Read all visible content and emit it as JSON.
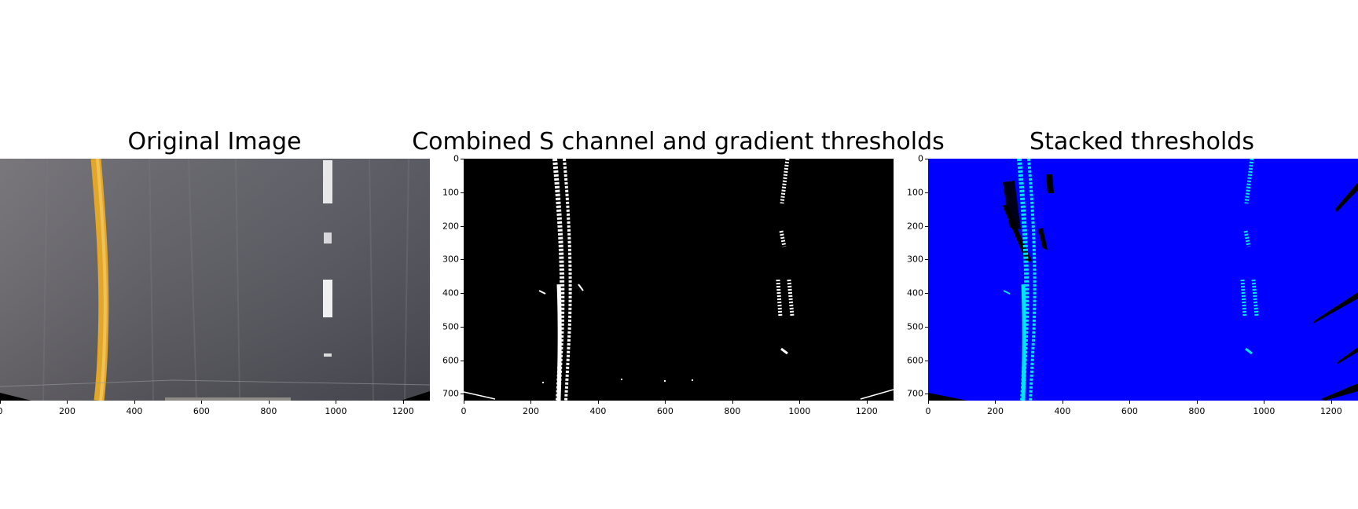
{
  "figure": {
    "panels": [
      {
        "title": "Original Image",
        "kind": "road-photo"
      },
      {
        "title": "Combined S channel and gradient thresholds",
        "kind": "binary-threshold"
      },
      {
        "title": "Stacked thresholds",
        "kind": "stacked-threshold"
      }
    ],
    "x_ticks": [
      "0",
      "200",
      "400",
      "600",
      "800",
      "1000",
      "1200"
    ],
    "y_ticks": [
      "0",
      "100",
      "200",
      "300",
      "400",
      "500",
      "600",
      "700"
    ],
    "x_tick_values": [
      0,
      200,
      400,
      600,
      800,
      1000,
      1200
    ],
    "y_tick_values": [
      0,
      100,
      200,
      300,
      400,
      500,
      600,
      700
    ],
    "image_width": 1280,
    "image_height": 720,
    "colors": {
      "road": "#5a5a62",
      "yellow_line": "#e0a428",
      "threshold_bg": "#000000",
      "stack_bg": "#0000ff",
      "stack_line": "#00e5ff"
    }
  }
}
